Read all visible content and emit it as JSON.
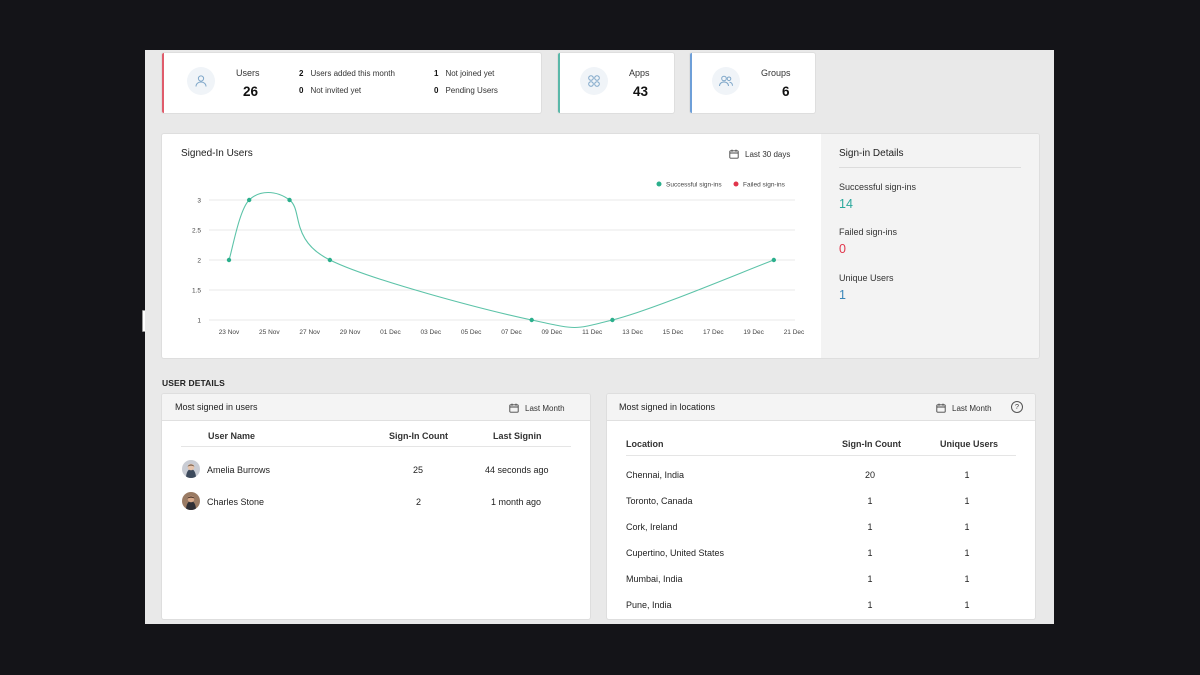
{
  "stats": {
    "users": {
      "label": "Users",
      "value": "26",
      "color": "#e05c6b"
    },
    "mini": [
      {
        "count": "2",
        "label": "Users added this month"
      },
      {
        "count": "0",
        "label": "Not invited yet"
      },
      {
        "count": "1",
        "label": "Not joined yet"
      },
      {
        "count": "0",
        "label": "Pending Users"
      }
    ],
    "apps": {
      "label": "Apps",
      "value": "43",
      "color": "#5bb8a9"
    },
    "groups": {
      "label": "Groups",
      "value": "6",
      "color": "#6e9fd8"
    }
  },
  "signed_in_panel": {
    "title": "Signed-In Users",
    "range": "Last 30 days",
    "legend": [
      {
        "label": "Successful sign-ins",
        "color": "#2baf8c"
      },
      {
        "label": "Failed sign-ins",
        "color": "#e0354b"
      }
    ]
  },
  "chart_data": {
    "type": "line",
    "title": "Signed-In Users",
    "x": [
      "23 Nov",
      "25 Nov",
      "27 Nov",
      "29 Nov",
      "01 Dec",
      "03 Dec",
      "05 Dec",
      "07 Dec",
      "09 Dec",
      "11 Dec",
      "13 Dec",
      "15 Dec",
      "17 Dec",
      "19 Dec",
      "21 Dec"
    ],
    "series": [
      {
        "name": "Successful sign-ins",
        "color": "#2baf8c",
        "points": [
          {
            "x": "23 Nov",
            "y": 2
          },
          {
            "x": "24 Nov",
            "y": 3
          },
          {
            "x": "26 Nov",
            "y": 3
          },
          {
            "x": "28 Nov",
            "y": 2
          },
          {
            "x": "08 Dec",
            "y": 1
          },
          {
            "x": "12 Dec",
            "y": 1
          },
          {
            "x": "20 Dec",
            "y": 2
          }
        ]
      },
      {
        "name": "Failed sign-ins",
        "color": "#e0354b",
        "points": []
      }
    ],
    "yticks": [
      "1",
      "1.5",
      "2",
      "2.5",
      "3"
    ],
    "ylim": [
      1,
      3
    ],
    "grid": true,
    "legend": "top-right"
  },
  "signin_details": {
    "title": "Sign-in Details",
    "items": [
      {
        "label": "Successful sign-ins",
        "value": "14",
        "color": "#2ba89c"
      },
      {
        "label": "Failed sign-ins",
        "value": "0",
        "color": "#e0354b"
      },
      {
        "label": "Unique Users",
        "value": "1",
        "color": "#3a86b8"
      }
    ]
  },
  "user_details": {
    "heading": "USER DETAILS",
    "most_users": {
      "title": "Most signed in users",
      "range": "Last Month",
      "columns": [
        "User Name",
        "Sign-In Count",
        "Last Signin"
      ],
      "rows": [
        {
          "name": "Amelia Burrows",
          "count": "25",
          "last": "44 seconds ago"
        },
        {
          "name": "Charles Stone",
          "count": "2",
          "last": "1 month ago"
        }
      ]
    },
    "most_locations": {
      "title": "Most signed in locations",
      "range": "Last Month",
      "columns": [
        "Location",
        "Sign-In Count",
        "Unique Users"
      ],
      "rows": [
        {
          "location": "Chennai, India",
          "count": "20",
          "unique": "1"
        },
        {
          "location": "Toronto, Canada",
          "count": "1",
          "unique": "1"
        },
        {
          "location": "Cork, Ireland",
          "count": "1",
          "unique": "1"
        },
        {
          "location": "Cupertino, United States",
          "count": "1",
          "unique": "1"
        },
        {
          "location": "Mumbai, India",
          "count": "1",
          "unique": "1"
        },
        {
          "location": "Pune, India",
          "count": "1",
          "unique": "1"
        }
      ]
    }
  }
}
